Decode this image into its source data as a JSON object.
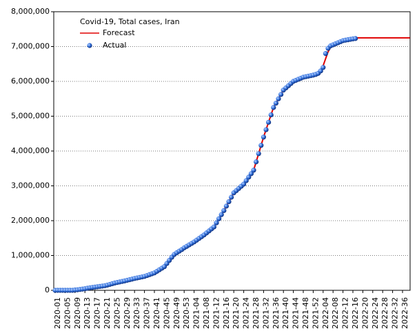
{
  "chart_data": {
    "type": "line",
    "title": "Covid-19, Total cases, Iran",
    "categories": [
      "2020-01",
      null,
      null,
      null,
      "2020-05",
      null,
      null,
      null,
      "2020-09",
      null,
      null,
      null,
      "2020-13",
      null,
      null,
      null,
      "2020-17",
      null,
      null,
      null,
      "2020-21",
      null,
      null,
      null,
      "2020-25",
      null,
      null,
      null,
      "2020-29",
      null,
      null,
      null,
      "2020-33",
      null,
      null,
      null,
      "2020-37",
      null,
      null,
      null,
      "2020-41",
      null,
      null,
      null,
      "2020-45",
      null,
      null,
      null,
      "2020-49",
      null,
      null,
      null,
      "2020-53",
      null,
      null,
      null,
      "2021-04",
      null,
      null,
      null,
      "2021-08",
      null,
      null,
      null,
      "2021-12",
      null,
      null,
      null,
      "2021-16",
      null,
      null,
      null,
      "2021-20",
      null,
      null,
      null,
      "2021-24",
      null,
      null,
      null,
      "2021-28",
      null,
      null,
      null,
      "2021-32",
      null,
      null,
      null,
      "2021-36",
      null,
      null,
      null,
      "2021-40",
      null,
      null,
      null,
      "2021-44",
      null,
      null,
      null,
      "2021-48",
      null,
      null,
      null,
      "2021-52",
      null,
      null,
      null,
      "2022-04",
      null,
      null,
      null,
      "2022-08",
      null,
      null,
      null,
      "2022-12",
      null,
      null,
      null,
      "2022-16",
      null,
      null,
      null,
      "2022-20",
      null,
      null,
      null,
      "2022-24",
      null,
      null,
      null,
      "2022-28",
      null,
      null,
      null,
      "2022-32",
      null,
      null,
      null,
      "2022-36",
      null,
      null,
      null
    ],
    "series": [
      {
        "name": "Forecast",
        "color": "#e00000",
        "style": "line",
        "values": [
          0,
          0,
          0,
          0,
          0,
          0,
          0,
          0,
          10000,
          15000,
          25000,
          35000,
          45000,
          60000,
          72000,
          82000,
          92000,
          102000,
          112000,
          122000,
          132000,
          150000,
          170000,
          190000,
          210000,
          225000,
          240000,
          255000,
          270000,
          288000,
          305000,
          322000,
          340000,
          355000,
          370000,
          385000,
          400000,
          425000,
          450000,
          475000,
          500000,
          545000,
          590000,
          635000,
          680000,
          770000,
          860000,
          950000,
          1030000,
          1080000,
          1125000,
          1170000,
          1220000,
          1262000,
          1305000,
          1348000,
          1390000,
          1440000,
          1490000,
          1540000,
          1590000,
          1648000,
          1705000,
          1763000,
          1820000,
          1938000,
          2055000,
          2173000,
          2290000,
          2418000,
          2545000,
          2673000,
          2800000,
          2863000,
          2925000,
          2988000,
          3050000,
          3150000,
          3250000,
          3350000,
          3450000,
          3688000,
          3925000,
          4163000,
          4400000,
          4613000,
          4825000,
          5038000,
          5250000,
          5375000,
          5500000,
          5625000,
          5750000,
          5813000,
          5875000,
          5938000,
          6000000,
          6030000,
          6060000,
          6090000,
          6120000,
          6135000,
          6150000,
          6165000,
          6170000,
          6190000,
          6240000,
          6330000,
          6450000,
          6650000,
          6850000,
          6980000,
          7060000,
          7080000,
          7110000,
          7140000,
          7170000,
          7183000,
          7195000,
          7208000,
          7220000,
          7230000,
          7250000,
          7250000,
          7250000,
          7250000,
          7250000,
          7250000,
          7250000,
          7250000,
          7250000,
          7250000,
          7250000,
          7250000,
          7250000,
          7250000,
          7250000,
          7250000,
          7250000,
          7250000,
          7250000,
          7250000,
          7250000,
          7250000
        ]
      },
      {
        "name": "Actual",
        "color": "#1f5fd0",
        "style": "dots",
        "values": [
          0,
          0,
          0,
          0,
          0,
          0,
          0,
          0,
          10000,
          15000,
          25000,
          35000,
          45000,
          60000,
          72000,
          82000,
          92000,
          102000,
          112000,
          122000,
          132000,
          150000,
          170000,
          190000,
          210000,
          225000,
          240000,
          255000,
          270000,
          288000,
          305000,
          322000,
          340000,
          355000,
          370000,
          385000,
          400000,
          425000,
          450000,
          475000,
          500000,
          545000,
          590000,
          635000,
          680000,
          770000,
          860000,
          950000,
          1030000,
          1080000,
          1125000,
          1170000,
          1220000,
          1262000,
          1305000,
          1348000,
          1390000,
          1440000,
          1490000,
          1540000,
          1590000,
          1648000,
          1705000,
          1763000,
          1820000,
          1938000,
          2055000,
          2173000,
          2290000,
          2418000,
          2545000,
          2673000,
          2800000,
          2863000,
          2925000,
          2988000,
          3050000,
          3150000,
          3250000,
          3350000,
          3450000,
          3688000,
          3925000,
          4163000,
          4400000,
          4613000,
          4825000,
          5038000,
          5250000,
          5375000,
          5500000,
          5625000,
          5750000,
          5813000,
          5875000,
          5938000,
          6000000,
          6030000,
          6060000,
          6090000,
          6120000,
          6135000,
          6150000,
          6165000,
          6180000,
          6200000,
          6230000,
          6300000,
          6400000,
          6800000,
          6950000,
          7020000,
          7050000,
          7080000,
          7110000,
          7140000,
          7170000,
          7183000,
          7195000,
          7208000,
          7220000,
          7230000,
          null,
          null,
          null,
          null,
          null,
          null,
          null,
          null,
          null,
          null,
          null,
          null,
          null,
          null,
          null,
          null,
          null,
          null,
          null,
          null,
          null,
          null
        ]
      }
    ],
    "ylim": [
      0,
      8000000
    ],
    "yticks": [
      0,
      {
        "value": 1000000,
        "label": "1,000,000"
      },
      {
        "value": 2000000,
        "label": "2,000,000"
      },
      {
        "value": 3000000,
        "label": "3,000,000"
      },
      {
        "value": 4000000,
        "label": "4,000,000"
      },
      {
        "value": 5000000,
        "label": "5,000,000"
      },
      {
        "value": 6000000,
        "label": "6,000,000"
      },
      {
        "value": 7000000,
        "label": "7,000,000"
      },
      {
        "value": 8000000,
        "label": "8,000,000"
      }
    ],
    "grid": true,
    "legend": "upper left"
  }
}
